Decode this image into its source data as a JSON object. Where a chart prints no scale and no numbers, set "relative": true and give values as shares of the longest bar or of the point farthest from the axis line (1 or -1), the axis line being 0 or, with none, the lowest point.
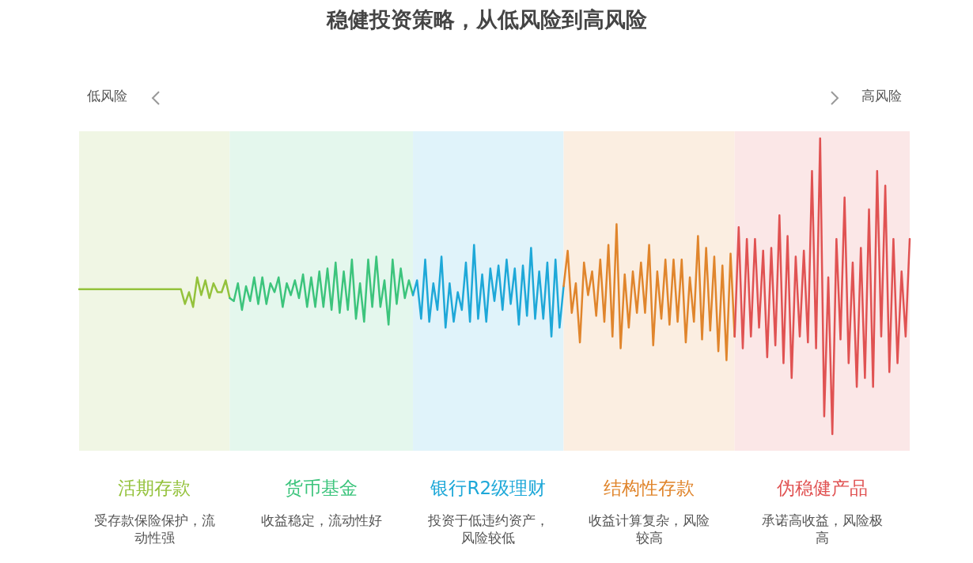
{
  "chart_data": {
    "type": "line",
    "title": "稳健投资策略，从低风险到高风险",
    "relative": true,
    "line_style": "solid",
    "marker": "none",
    "categories": [
      null,
      null,
      null,
      null,
      null,
      null,
      null,
      null,
      null,
      null,
      null,
      null,
      null,
      null,
      null,
      null,
      null,
      null,
      null,
      null,
      null,
      null,
      null,
      null,
      null,
      null,
      null,
      null,
      null,
      null,
      null,
      null,
      null,
      null,
      null,
      null,
      null,
      null,
      null,
      null,
      null,
      null,
      null,
      null,
      null,
      null,
      null,
      null,
      null,
      null,
      null,
      null,
      null,
      null,
      null,
      null,
      null,
      null,
      null,
      null,
      null,
      null,
      null,
      null,
      null,
      null,
      null,
      null,
      null,
      null,
      null,
      null,
      null,
      null,
      null,
      null,
      null,
      null,
      null,
      null,
      null,
      null,
      null,
      null,
      null,
      null,
      null,
      null,
      null,
      null,
      null,
      null,
      null,
      null,
      null,
      null,
      null,
      null,
      null,
      null,
      null,
      null,
      null,
      null,
      null,
      null,
      null,
      null,
      null,
      null,
      null,
      null,
      null,
      null,
      null,
      null,
      null,
      null,
      null,
      null,
      null,
      null,
      null,
      null,
      null,
      null,
      null,
      null,
      null,
      null,
      null,
      null,
      null,
      null,
      null,
      null,
      null,
      null,
      null,
      null,
      null,
      null,
      null,
      null,
      null,
      null,
      null,
      null,
      null,
      null,
      null,
      null,
      null,
      null,
      null,
      null,
      null,
      null,
      null,
      null,
      null,
      null,
      null,
      null,
      null,
      null,
      null,
      null,
      null,
      null,
      null,
      null,
      null,
      null,
      null,
      null,
      null,
      null,
      null,
      null,
      null,
      null,
      null,
      null,
      null,
      null,
      null,
      null,
      null,
      null,
      null,
      null,
      null,
      null,
      null,
      null,
      null,
      null,
      null,
      null,
      null,
      null,
      null,
      null,
      null
    ],
    "series": [
      {
        "color": "#94c23c",
        "values": [
          0.49,
          0.49,
          0.49,
          0.49,
          0.49,
          0.49,
          0.49,
          0.49,
          0.49,
          0.49,
          0.49,
          0.49,
          0.49,
          0.49,
          0.49,
          0.49,
          0.49,
          0.49,
          0.49,
          0.49,
          0.49,
          0.49,
          0.49,
          0.49,
          0.49,
          0.49,
          0.44,
          0.48,
          0.43,
          0.53,
          0.47,
          0.52,
          0.46,
          0.51,
          0.48,
          0.48,
          0.52,
          0.46,
          null,
          null,
          null,
          null,
          null,
          null,
          null,
          null,
          null,
          null,
          null,
          null,
          null,
          null,
          null,
          null,
          null,
          null,
          null,
          null,
          null,
          null,
          null,
          null,
          null,
          null,
          null,
          null,
          null,
          null,
          null,
          null,
          null,
          null,
          null,
          null,
          null,
          null,
          null,
          null,
          null,
          null,
          null,
          null,
          null,
          null,
          null,
          null,
          null,
          null,
          null,
          null,
          null,
          null,
          null,
          null,
          null,
          null,
          null,
          null,
          null,
          null,
          null,
          null,
          null,
          null,
          null,
          null,
          null,
          null,
          null,
          null,
          null,
          null,
          null,
          null,
          null,
          null,
          null,
          null,
          null,
          null,
          null,
          null,
          null,
          null,
          null,
          null,
          null,
          null,
          null,
          null,
          null,
          null,
          null,
          null,
          null,
          null,
          null,
          null,
          null,
          null,
          null,
          null,
          null,
          null,
          null,
          null,
          null,
          null,
          null,
          null,
          null,
          null,
          null,
          null,
          null,
          null,
          null,
          null,
          null,
          null,
          null,
          null,
          null,
          null,
          null,
          null,
          null,
          null,
          null,
          null,
          null,
          null,
          null,
          null,
          null,
          null,
          null,
          null,
          null,
          null,
          null,
          null,
          null,
          null,
          null,
          null,
          null,
          null,
          null,
          null,
          null,
          null,
          null,
          null,
          null,
          null,
          null,
          null,
          null,
          null,
          null,
          null,
          null,
          null,
          null
        ]
      },
      {
        "color": "#3cc47c",
        "values": [
          null,
          null,
          null,
          null,
          null,
          null,
          null,
          null,
          null,
          null,
          null,
          null,
          null,
          null,
          null,
          null,
          null,
          null,
          null,
          null,
          null,
          null,
          null,
          null,
          null,
          null,
          null,
          null,
          null,
          null,
          null,
          null,
          null,
          null,
          null,
          null,
          null,
          0.46,
          0.45,
          0.51,
          0.42,
          0.5,
          0.45,
          0.53,
          0.44,
          0.53,
          0.44,
          0.51,
          0.48,
          0.53,
          0.43,
          0.51,
          0.47,
          0.52,
          0.46,
          0.54,
          0.43,
          0.53,
          0.43,
          0.55,
          0.43,
          0.56,
          0.42,
          0.58,
          0.41,
          0.55,
          0.42,
          0.59,
          0.39,
          0.51,
          0.38,
          0.59,
          0.43,
          0.6,
          0.43,
          0.52,
          0.37,
          0.59,
          0.44,
          0.56,
          0.46,
          0.52,
          0.47,
          null,
          null,
          null,
          null,
          null,
          null,
          null,
          null,
          null,
          null,
          null,
          null,
          null,
          null,
          null,
          null,
          null,
          null,
          null,
          null,
          null,
          null,
          null,
          null,
          null,
          null,
          null,
          null,
          null,
          null,
          null,
          null,
          null,
          null,
          null,
          null,
          null,
          null,
          null,
          null,
          null,
          null,
          null,
          null,
          null,
          null,
          null,
          null,
          null,
          null,
          null,
          null,
          null,
          null,
          null,
          null,
          null,
          null,
          null,
          null,
          null,
          null,
          null,
          null,
          null,
          null,
          null,
          null,
          null,
          null,
          null,
          null,
          null,
          null,
          null,
          null,
          null,
          null,
          null,
          null,
          null,
          null,
          null,
          null,
          null,
          null,
          null,
          null,
          null,
          null,
          null,
          null,
          null,
          null,
          null,
          null,
          null,
          null,
          null,
          null,
          null,
          null,
          null,
          null,
          null,
          null,
          null,
          null,
          null,
          null,
          null,
          null,
          null,
          null,
          null,
          null,
          null,
          null,
          null,
          null,
          null,
          null
        ]
      },
      {
        "color": "#1ea8d8",
        "values": [
          null,
          null,
          null,
          null,
          null,
          null,
          null,
          null,
          null,
          null,
          null,
          null,
          null,
          null,
          null,
          null,
          null,
          null,
          null,
          null,
          null,
          null,
          null,
          null,
          null,
          null,
          null,
          null,
          null,
          null,
          null,
          null,
          null,
          null,
          null,
          null,
          null,
          null,
          null,
          null,
          null,
          null,
          null,
          null,
          null,
          null,
          null,
          null,
          null,
          null,
          null,
          null,
          null,
          null,
          null,
          null,
          null,
          null,
          null,
          null,
          null,
          null,
          null,
          null,
          null,
          null,
          null,
          null,
          null,
          null,
          null,
          null,
          null,
          null,
          null,
          null,
          null,
          null,
          null,
          null,
          null,
          null,
          0.47,
          0.52,
          0.39,
          0.59,
          0.38,
          0.51,
          0.42,
          0.6,
          0.36,
          0.51,
          0.38,
          0.48,
          0.42,
          0.58,
          0.38,
          0.64,
          0.39,
          0.54,
          0.38,
          0.56,
          0.45,
          0.57,
          0.42,
          0.59,
          0.44,
          0.56,
          0.37,
          0.57,
          0.4,
          0.63,
          0.39,
          0.55,
          0.39,
          0.58,
          0.33,
          0.59,
          0.36,
          0.5,
          null,
          null,
          null,
          null,
          null,
          null,
          null,
          null,
          null,
          null,
          null,
          null,
          null,
          null,
          null,
          null,
          null,
          null,
          null,
          null,
          null,
          null,
          null,
          null,
          null,
          null,
          null,
          null,
          null,
          null,
          null,
          null,
          null,
          null,
          null,
          null,
          null,
          null,
          null,
          null,
          null,
          null,
          null,
          null,
          null,
          null,
          null,
          null,
          null,
          null,
          null,
          null,
          null,
          null,
          null,
          null,
          null,
          null,
          null,
          null,
          null,
          null,
          null,
          null,
          null,
          null,
          null,
          null,
          null,
          null,
          null,
          null,
          null,
          null,
          null,
          null,
          null,
          null,
          null,
          null,
          null,
          null,
          null,
          null,
          null
        ]
      },
      {
        "color": "#e0852c",
        "values": [
          null,
          null,
          null,
          null,
          null,
          null,
          null,
          null,
          null,
          null,
          null,
          null,
          null,
          null,
          null,
          null,
          null,
          null,
          null,
          null,
          null,
          null,
          null,
          null,
          null,
          null,
          null,
          null,
          null,
          null,
          null,
          null,
          null,
          null,
          null,
          null,
          null,
          null,
          null,
          null,
          null,
          null,
          null,
          null,
          null,
          null,
          null,
          null,
          null,
          null,
          null,
          null,
          null,
          null,
          null,
          null,
          null,
          null,
          null,
          null,
          null,
          null,
          null,
          null,
          null,
          null,
          null,
          null,
          null,
          null,
          null,
          null,
          null,
          null,
          null,
          null,
          null,
          null,
          null,
          null,
          null,
          null,
          null,
          null,
          null,
          null,
          null,
          null,
          null,
          null,
          null,
          null,
          null,
          null,
          null,
          null,
          null,
          null,
          null,
          null,
          null,
          null,
          null,
          null,
          null,
          null,
          null,
          null,
          null,
          null,
          null,
          null,
          null,
          null,
          null,
          null,
          null,
          null,
          null,
          0.5,
          0.62,
          0.41,
          0.51,
          0.31,
          0.58,
          0.47,
          0.55,
          0.4,
          0.59,
          0.38,
          0.64,
          0.33,
          0.71,
          0.29,
          0.54,
          0.36,
          0.55,
          0.41,
          0.58,
          0.41,
          0.64,
          0.3,
          0.55,
          0.39,
          0.59,
          0.37,
          0.59,
          0.38,
          0.59,
          0.31,
          0.53,
          0.38,
          0.67,
          0.32,
          0.63,
          0.35,
          0.6,
          0.28,
          0.57,
          0.25,
          0.61,
          0.33,
          null,
          null,
          null,
          null,
          null,
          null,
          null,
          null,
          null,
          null,
          null,
          null,
          null,
          null,
          null,
          null,
          null,
          null,
          null,
          null,
          null,
          null,
          null,
          null,
          null,
          null,
          null,
          null,
          null,
          null,
          null,
          null,
          null,
          null,
          null,
          null,
          null,
          null,
          null,
          null,
          null,
          null,
          null
        ]
      },
      {
        "color": "#e05252",
        "values": [
          null,
          null,
          null,
          null,
          null,
          null,
          null,
          null,
          null,
          null,
          null,
          null,
          null,
          null,
          null,
          null,
          null,
          null,
          null,
          null,
          null,
          null,
          null,
          null,
          null,
          null,
          null,
          null,
          null,
          null,
          null,
          null,
          null,
          null,
          null,
          null,
          null,
          null,
          null,
          null,
          null,
          null,
          null,
          null,
          null,
          null,
          null,
          null,
          null,
          null,
          null,
          null,
          null,
          null,
          null,
          null,
          null,
          null,
          null,
          null,
          null,
          null,
          null,
          null,
          null,
          null,
          null,
          null,
          null,
          null,
          null,
          null,
          null,
          null,
          null,
          null,
          null,
          null,
          null,
          null,
          null,
          null,
          null,
          null,
          null,
          null,
          null,
          null,
          null,
          null,
          null,
          null,
          null,
          null,
          null,
          null,
          null,
          null,
          null,
          null,
          null,
          null,
          null,
          null,
          null,
          null,
          null,
          null,
          null,
          null,
          null,
          null,
          null,
          null,
          null,
          null,
          null,
          null,
          null,
          null,
          null,
          null,
          null,
          null,
          null,
          null,
          null,
          null,
          null,
          null,
          null,
          null,
          null,
          null,
          null,
          null,
          null,
          null,
          null,
          null,
          null,
          null,
          null,
          null,
          null,
          null,
          null,
          null,
          null,
          null,
          null,
          null,
          null,
          null,
          null,
          null,
          null,
          null,
          null,
          null,
          null,
          0.33,
          0.7,
          0.29,
          0.66,
          0.33,
          0.66,
          0.36,
          0.62,
          0.26,
          0.63,
          0.3,
          0.74,
          0.24,
          0.67,
          0.19,
          0.6,
          0.33,
          0.62,
          0.31,
          0.89,
          0.29,
          1.0,
          0.06,
          0.53,
          0.0,
          0.66,
          0.32,
          0.8,
          0.24,
          0.58,
          0.16,
          0.63,
          0.19,
          0.76,
          0.16,
          0.89,
          0.33,
          0.84,
          0.21,
          0.66,
          0.24,
          0.55,
          0.33,
          0.66
        ]
      }
    ],
    "annotations": [
      "活期存款",
      "货币基金",
      "银行R2级理财",
      "结构性存款",
      "伪稳健产品",
      "受存款保险保护，流动性强",
      "收益稳定，流动性好",
      "投资于低违约资产，风险较低",
      "收益计算复杂，风险较高",
      "承诺高收益，风险极高",
      "低风险",
      "高风险"
    ]
  }
}
